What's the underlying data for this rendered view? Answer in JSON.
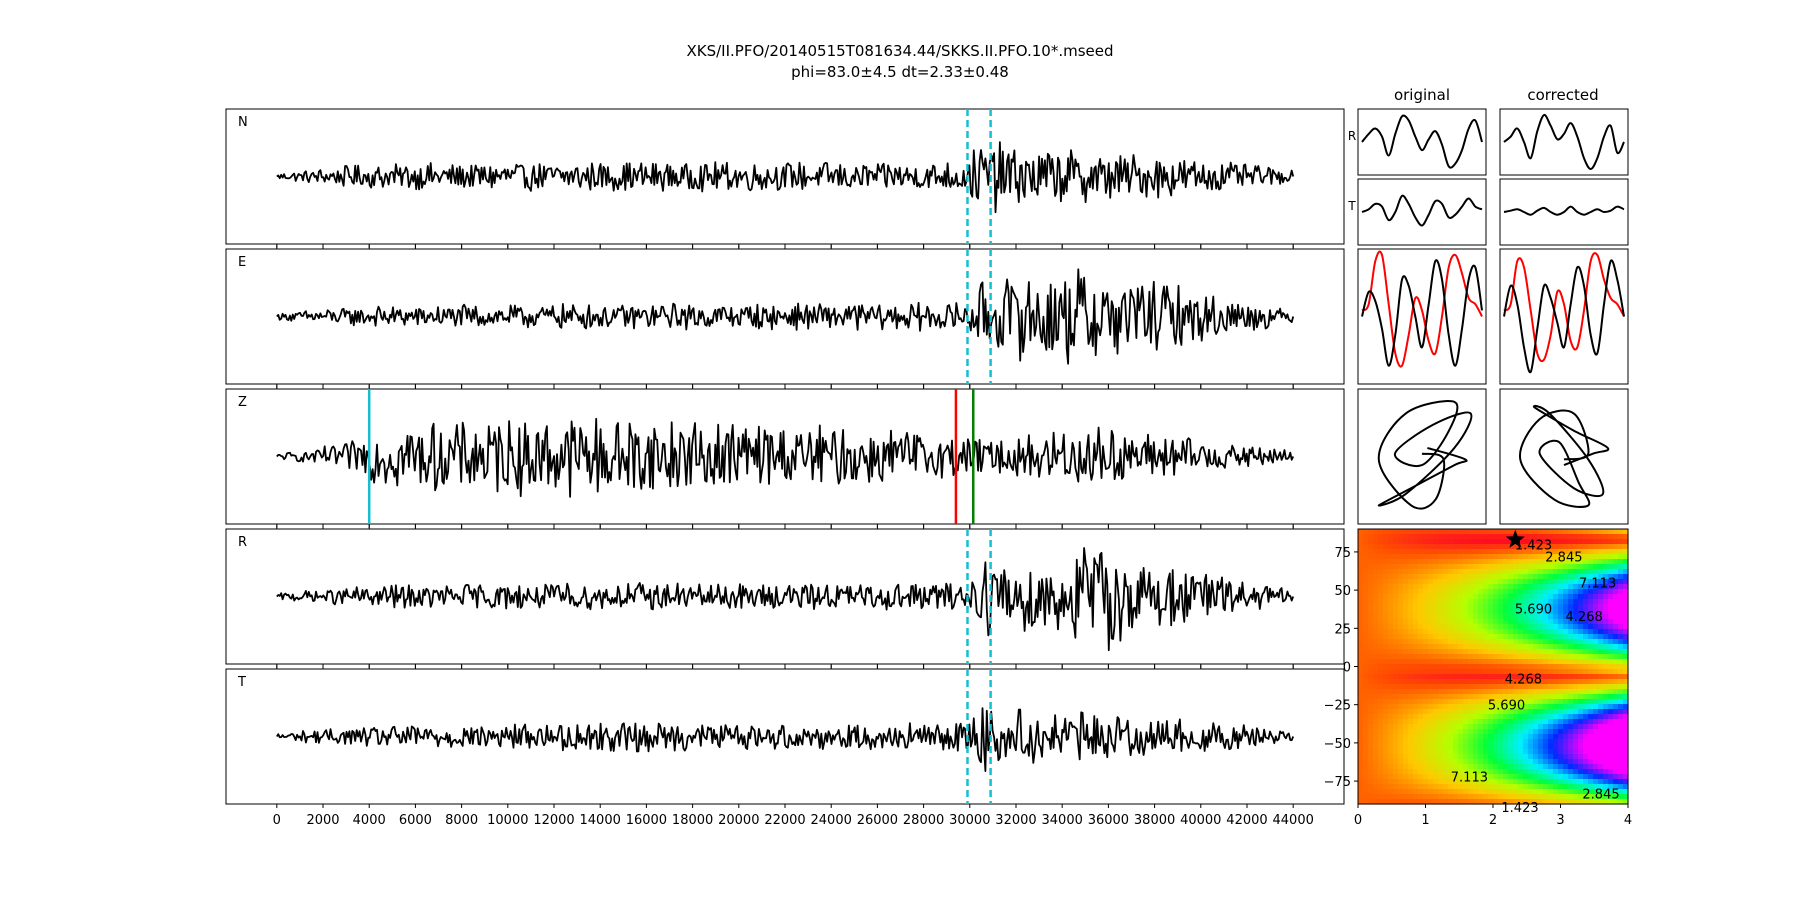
{
  "title": {
    "line1": "XKS/II.PFO/20140515T081634.44/SKKS.II.PFO.10*.mseed",
    "line2": "phi=83.0±4.5 dt=2.33±0.48"
  },
  "colors": {
    "trace": "#000000",
    "window_marker": "#17becf",
    "pick_red": "#ff0000",
    "pick_green": "#008000",
    "particle_motion_radial": "#ff0000"
  },
  "chart_data": [
    {
      "type": "line",
      "name": "waveform-traces",
      "components": [
        "N",
        "E",
        "Z",
        "R",
        "T"
      ],
      "x_ticks": [
        0,
        2000,
        4000,
        6000,
        8000,
        10000,
        12000,
        14000,
        16000,
        18000,
        20000,
        22000,
        24000,
        26000,
        28000,
        30000,
        32000,
        34000,
        36000,
        38000,
        40000,
        42000,
        44000
      ],
      "xlim": [
        -2200,
        46200
      ],
      "x_range": [
        0,
        44000
      ],
      "window_markers": [
        29900,
        30900
      ],
      "window_marker_panels": [
        "N",
        "E",
        "R",
        "T"
      ],
      "z_picks": [
        {
          "x": 4000,
          "color": "#17becf"
        },
        {
          "x": 29400,
          "color": "#ff0000"
        },
        {
          "x": 30150,
          "color": "#008000"
        }
      ],
      "amplitude_profile": {
        "x": [
          0,
          1200,
          3000,
          5000,
          10000,
          16000,
          20000,
          26000,
          29900,
          30600,
          31500,
          34000,
          35500,
          38000,
          41000,
          44000
        ],
        "N": [
          0.05,
          0.1,
          0.18,
          0.22,
          0.24,
          0.25,
          0.24,
          0.24,
          0.26,
          0.75,
          0.55,
          0.45,
          0.42,
          0.35,
          0.25,
          0.1
        ],
        "E": [
          0.05,
          0.1,
          0.15,
          0.18,
          0.2,
          0.22,
          0.22,
          0.22,
          0.25,
          0.6,
          0.7,
          0.85,
          0.8,
          0.6,
          0.35,
          0.1
        ],
        "Z": [
          0.05,
          0.1,
          0.25,
          0.55,
          0.65,
          0.7,
          0.6,
          0.5,
          0.35,
          0.28,
          0.3,
          0.5,
          0.55,
          0.4,
          0.25,
          0.1
        ],
        "R": [
          0.05,
          0.1,
          0.15,
          0.2,
          0.22,
          0.24,
          0.22,
          0.22,
          0.25,
          0.65,
          0.75,
          0.7,
          1.0,
          0.55,
          0.35,
          0.1
        ],
        "T": [
          0.05,
          0.1,
          0.15,
          0.2,
          0.22,
          0.25,
          0.22,
          0.22,
          0.25,
          0.65,
          0.5,
          0.4,
          0.4,
          0.3,
          0.25,
          0.1
        ]
      }
    },
    {
      "type": "line",
      "name": "window-waveforms",
      "column_titles": [
        "original",
        "corrected"
      ],
      "row_labels": [
        "R",
        "T"
      ],
      "original_R": [
        0.0,
        0.3,
        0.5,
        0.2,
        -0.5,
        0.3,
        0.95,
        0.8,
        0.2,
        -0.3,
        0.1,
        0.4,
        -0.1,
        -0.9,
        -0.8,
        -0.3,
        0.5,
        0.8,
        0.0
      ],
      "original_T": [
        0.0,
        0.1,
        0.3,
        0.2,
        -0.3,
        0.0,
        0.6,
        0.3,
        -0.2,
        -0.5,
        -0.1,
        0.4,
        0.3,
        -0.2,
        -0.1,
        0.2,
        0.5,
        0.2,
        0.1
      ],
      "corrected_R": [
        0.0,
        0.2,
        0.5,
        0.0,
        -0.6,
        0.4,
        1.0,
        0.6,
        0.1,
        0.3,
        0.7,
        0.2,
        -0.6,
        -1.0,
        -0.6,
        0.2,
        0.6,
        -0.4,
        0.0
      ],
      "corrected_T": [
        0.0,
        0.05,
        0.1,
        0.0,
        -0.1,
        0.05,
        0.15,
        0.0,
        -0.1,
        0.0,
        0.2,
        0.0,
        -0.1,
        0.0,
        0.1,
        0.0,
        0.05,
        0.2,
        0.1
      ]
    },
    {
      "type": "line",
      "name": "particle-motion-overlay",
      "original_black": [
        0.0,
        0.4,
        0.25,
        -0.2,
        -0.8,
        -0.3,
        0.6,
        0.5,
        0.0,
        -0.5,
        0.2,
        0.9,
        0.6,
        -0.3,
        -0.8,
        -0.2,
        0.6,
        0.8,
        0.1
      ],
      "original_red": [
        0.1,
        0.2,
        0.9,
        1.0,
        0.2,
        -0.6,
        -0.8,
        -0.3,
        0.3,
        0.1,
        -0.4,
        -0.6,
        0.0,
        0.8,
        1.0,
        0.7,
        0.3,
        0.2,
        0.0
      ],
      "corrected_black": [
        0.0,
        0.5,
        0.2,
        -0.5,
        -0.9,
        -0.2,
        0.5,
        0.3,
        -0.1,
        -0.5,
        0.2,
        0.8,
        0.5,
        -0.3,
        -0.6,
        0.2,
        0.9,
        0.6,
        0.0
      ],
      "corrected_red": [
        0.1,
        0.2,
        0.9,
        0.8,
        0.1,
        -0.6,
        -0.7,
        -0.3,
        0.4,
        0.2,
        -0.4,
        -0.5,
        0.1,
        0.9,
        1.0,
        0.6,
        0.3,
        0.2,
        0.0
      ]
    },
    {
      "type": "heatmap",
      "name": "error-surface",
      "xlim": [
        0,
        4
      ],
      "ylim": [
        -90,
        90
      ],
      "x_ticks": [
        0,
        1,
        2,
        3,
        4
      ],
      "y_ticks": [
        -75,
        -50,
        -25,
        0,
        25,
        50,
        75
      ],
      "contour_levels": [
        1.423,
        2.845,
        4.268,
        5.69,
        7.113
      ],
      "contour_labels": [
        "1.423",
        "2.845",
        "4.268",
        "5.690",
        "7.113"
      ],
      "best_fit": {
        "dt": 2.33,
        "phi": 83.0
      },
      "colormap": "gist_rainbow"
    }
  ]
}
